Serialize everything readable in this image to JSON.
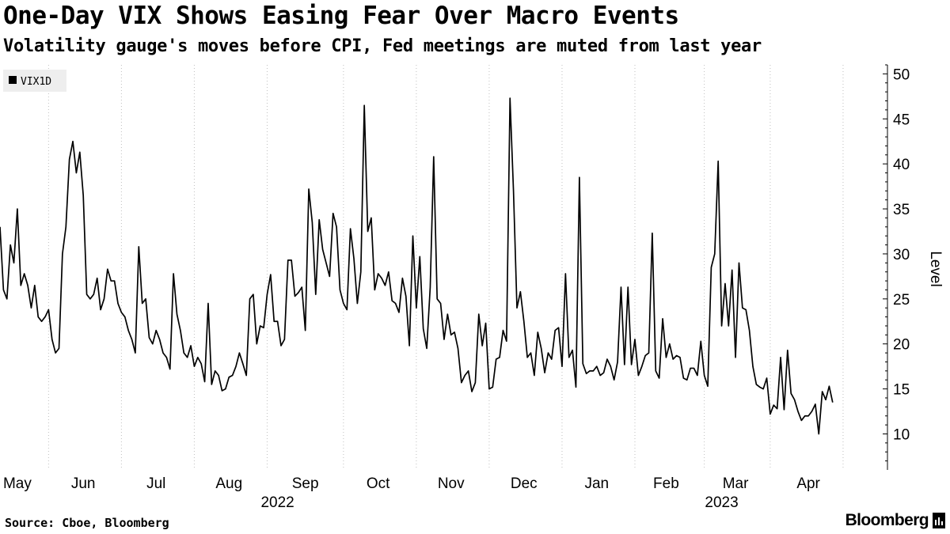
{
  "header": {
    "title": "One-Day VIX Shows Easing Fear Over Macro Events",
    "subtitle": "Volatility gauge's moves before CPI, Fed meetings are muted from last year"
  },
  "footer": {
    "source": "Source: Cboe, Bloomberg",
    "brand": "Bloomberg"
  },
  "colors": {
    "line": "#000000",
    "grid": "#bfbfbf",
    "legend_bg": "#eeeeee"
  },
  "chart_data": {
    "type": "line",
    "title": "One-Day VIX Shows Easing Fear Over Macro Events",
    "subtitle": "Volatility gauge's moves before CPI, Fed meetings are muted from last year",
    "ylabel": "Level",
    "xlabel": "",
    "ylim": [
      6,
      51
    ],
    "yticks": [
      10,
      15,
      20,
      25,
      30,
      35,
      40,
      45,
      50
    ],
    "y_axis_side": "right",
    "grid": "vertical dotted at month boundaries",
    "legend": {
      "position": "top-left",
      "entries": [
        "VIX1D"
      ]
    },
    "x_domain": [
      0,
      251
    ],
    "month_ticks": [
      {
        "label": "May",
        "x": 5
      },
      {
        "label": "Jun",
        "x": 24
      },
      {
        "label": "Jul",
        "x": 45
      },
      {
        "label": "Aug",
        "x": 66
      },
      {
        "label": "Sep",
        "x": 88
      },
      {
        "label": "Oct",
        "x": 109
      },
      {
        "label": "Nov",
        "x": 130
      },
      {
        "label": "Dec",
        "x": 151
      },
      {
        "label": "Jan",
        "x": 172
      },
      {
        "label": "Feb",
        "x": 192
      },
      {
        "label": "Mar",
        "x": 212
      },
      {
        "label": "Apr",
        "x": 233
      }
    ],
    "month_boundaries": [
      14,
      35,
      56,
      77,
      99,
      120,
      141,
      162,
      183,
      203,
      222,
      243
    ],
    "year_labels": [
      {
        "label": "2022",
        "x": 80
      },
      {
        "label": "2023",
        "x": 208
      }
    ],
    "series": [
      {
        "name": "VIX1D",
        "points": [
          [
            0,
            33.0
          ],
          [
            1,
            26.0
          ],
          [
            2,
            25.0
          ],
          [
            3,
            31.0
          ],
          [
            4,
            29.0
          ],
          [
            5,
            35.0
          ],
          [
            6,
            26.5
          ],
          [
            7,
            27.8
          ],
          [
            8,
            26.5
          ],
          [
            9,
            24.0
          ],
          [
            10,
            26.5
          ],
          [
            11,
            23.0
          ],
          [
            12,
            22.5
          ],
          [
            13,
            23.0
          ],
          [
            14,
            23.8
          ],
          [
            15,
            20.5
          ],
          [
            16,
            19.0
          ],
          [
            17,
            19.5
          ],
          [
            18,
            30.0
          ],
          [
            19,
            33.0
          ],
          [
            20,
            40.5
          ],
          [
            21,
            42.5
          ],
          [
            22,
            39.0
          ],
          [
            23,
            41.3
          ],
          [
            24,
            36.5
          ],
          [
            25,
            25.5
          ],
          [
            26,
            25.0
          ],
          [
            27,
            25.5
          ],
          [
            28,
            27.3
          ],
          [
            29,
            23.8
          ],
          [
            30,
            25.0
          ],
          [
            31,
            28.3
          ],
          [
            32,
            27.0
          ],
          [
            33,
            27.0
          ],
          [
            34,
            24.5
          ],
          [
            35,
            23.5
          ],
          [
            36,
            23.0
          ],
          [
            37,
            21.5
          ],
          [
            38,
            20.5
          ],
          [
            39,
            19.0
          ],
          [
            40,
            30.8
          ],
          [
            41,
            24.5
          ],
          [
            42,
            25.0
          ],
          [
            43,
            20.7
          ],
          [
            44,
            20.0
          ],
          [
            45,
            21.5
          ],
          [
            46,
            20.5
          ],
          [
            47,
            19.0
          ],
          [
            48,
            18.5
          ],
          [
            49,
            17.2
          ],
          [
            50,
            27.8
          ],
          [
            51,
            23.3
          ],
          [
            52,
            21.5
          ],
          [
            53,
            19.0
          ],
          [
            54,
            18.5
          ],
          [
            55,
            19.8
          ],
          [
            56,
            17.5
          ],
          [
            57,
            18.5
          ],
          [
            58,
            17.8
          ],
          [
            59,
            15.8
          ],
          [
            60,
            24.5
          ],
          [
            61,
            15.5
          ],
          [
            62,
            17.0
          ],
          [
            63,
            16.5
          ],
          [
            64,
            14.8
          ],
          [
            65,
            15.0
          ],
          [
            66,
            16.3
          ],
          [
            67,
            16.5
          ],
          [
            68,
            17.5
          ],
          [
            69,
            19.0
          ],
          [
            70,
            17.8
          ],
          [
            71,
            16.5
          ],
          [
            72,
            25.0
          ],
          [
            73,
            25.5
          ],
          [
            74,
            20.0
          ],
          [
            75,
            22.0
          ],
          [
            76,
            21.8
          ],
          [
            77,
            25.5
          ],
          [
            78,
            27.7
          ],
          [
            79,
            22.5
          ],
          [
            80,
            22.5
          ],
          [
            81,
            19.8
          ],
          [
            82,
            20.5
          ],
          [
            83,
            29.3
          ],
          [
            84,
            29.3
          ],
          [
            85,
            25.3
          ],
          [
            86,
            25.7
          ],
          [
            87,
            26.3
          ],
          [
            88,
            21.5
          ],
          [
            89,
            37.2
          ],
          [
            90,
            33.5
          ],
          [
            91,
            25.5
          ],
          [
            92,
            33.8
          ],
          [
            93,
            30.5
          ],
          [
            94,
            29.0
          ],
          [
            95,
            27.5
          ],
          [
            96,
            34.5
          ],
          [
            97,
            33.0
          ],
          [
            98,
            26.0
          ],
          [
            99,
            24.5
          ],
          [
            100,
            23.8
          ],
          [
            101,
            32.8
          ],
          [
            102,
            29.5
          ],
          [
            103,
            24.5
          ],
          [
            104,
            28.0
          ],
          [
            105,
            46.5
          ],
          [
            106,
            32.5
          ],
          [
            107,
            34.0
          ],
          [
            108,
            26.0
          ],
          [
            109,
            27.8
          ],
          [
            110,
            27.3
          ],
          [
            111,
            26.5
          ],
          [
            112,
            28.0
          ],
          [
            113,
            24.8
          ],
          [
            114,
            24.5
          ],
          [
            115,
            23.5
          ],
          [
            116,
            27.3
          ],
          [
            117,
            25.3
          ],
          [
            118,
            19.8
          ],
          [
            119,
            32.0
          ],
          [
            120,
            24.0
          ],
          [
            121,
            29.7
          ],
          [
            122,
            21.7
          ],
          [
            123,
            19.5
          ],
          [
            124,
            26.3
          ],
          [
            125,
            40.8
          ],
          [
            126,
            25.0
          ],
          [
            127,
            24.5
          ],
          [
            128,
            20.5
          ],
          [
            129,
            23.3
          ],
          [
            130,
            21.0
          ],
          [
            131,
            21.3
          ],
          [
            132,
            19.5
          ],
          [
            133,
            15.7
          ],
          [
            134,
            16.5
          ],
          [
            135,
            17.0
          ],
          [
            136,
            14.7
          ],
          [
            137,
            15.7
          ],
          [
            138,
            23.3
          ],
          [
            139,
            19.8
          ],
          [
            140,
            22.3
          ],
          [
            141,
            15.0
          ],
          [
            142,
            15.2
          ],
          [
            143,
            18.3
          ],
          [
            144,
            18.5
          ],
          [
            145,
            21.5
          ],
          [
            146,
            20.3
          ],
          [
            147,
            47.3
          ],
          [
            148,
            37.0
          ],
          [
            149,
            24.0
          ],
          [
            150,
            25.8
          ],
          [
            151,
            22.5
          ],
          [
            152,
            18.5
          ],
          [
            153,
            19.0
          ],
          [
            154,
            16.5
          ],
          [
            155,
            21.3
          ],
          [
            156,
            19.5
          ],
          [
            157,
            16.8
          ],
          [
            158,
            19.0
          ],
          [
            159,
            18.3
          ],
          [
            160,
            21.5
          ],
          [
            161,
            21.8
          ],
          [
            162,
            17.5
          ],
          [
            163,
            27.8
          ],
          [
            164,
            18.5
          ],
          [
            165,
            19.3
          ],
          [
            166,
            15.2
          ],
          [
            167,
            38.5
          ],
          [
            168,
            17.8
          ],
          [
            169,
            16.7
          ],
          [
            170,
            17.0
          ],
          [
            171,
            17.0
          ],
          [
            172,
            17.5
          ],
          [
            173,
            16.5
          ],
          [
            174,
            16.8
          ],
          [
            175,
            18.3
          ],
          [
            176,
            17.5
          ],
          [
            177,
            16.0
          ],
          [
            178,
            18.0
          ],
          [
            179,
            26.3
          ],
          [
            180,
            17.7
          ],
          [
            181,
            26.3
          ],
          [
            182,
            17.7
          ],
          [
            183,
            20.5
          ],
          [
            184,
            16.5
          ],
          [
            185,
            17.5
          ],
          [
            186,
            18.7
          ],
          [
            187,
            19.0
          ],
          [
            188,
            32.3
          ],
          [
            189,
            17.0
          ],
          [
            190,
            16.2
          ],
          [
            191,
            22.8
          ],
          [
            192,
            18.5
          ],
          [
            193,
            20.0
          ],
          [
            194,
            18.3
          ],
          [
            195,
            18.7
          ],
          [
            196,
            18.5
          ],
          [
            197,
            16.2
          ],
          [
            198,
            16.0
          ],
          [
            199,
            17.3
          ],
          [
            200,
            17.3
          ],
          [
            201,
            16.5
          ],
          [
            202,
            20.3
          ],
          [
            203,
            16.5
          ],
          [
            204,
            15.3
          ],
          [
            205,
            28.5
          ],
          [
            206,
            30.0
          ],
          [
            207,
            40.3
          ],
          [
            208,
            22.0
          ],
          [
            209,
            26.7
          ],
          [
            210,
            22.0
          ],
          [
            211,
            28.2
          ],
          [
            212,
            18.5
          ],
          [
            213,
            29.0
          ],
          [
            214,
            24.0
          ],
          [
            215,
            23.8
          ],
          [
            216,
            21.5
          ],
          [
            217,
            17.5
          ],
          [
            218,
            15.5
          ],
          [
            219,
            15.2
          ],
          [
            220,
            15.0
          ],
          [
            221,
            16.2
          ],
          [
            222,
            12.2
          ],
          [
            223,
            13.2
          ],
          [
            224,
            12.8
          ],
          [
            225,
            18.5
          ],
          [
            226,
            12.7
          ],
          [
            227,
            19.3
          ],
          [
            228,
            14.5
          ],
          [
            229,
            13.8
          ],
          [
            230,
            12.5
          ],
          [
            231,
            11.5
          ],
          [
            232,
            12.0
          ],
          [
            233,
            12.0
          ],
          [
            234,
            12.5
          ],
          [
            235,
            13.3
          ],
          [
            236,
            10.0
          ],
          [
            237,
            14.7
          ],
          [
            238,
            13.8
          ],
          [
            239,
            15.3
          ],
          [
            240,
            13.5
          ]
        ]
      }
    ]
  }
}
